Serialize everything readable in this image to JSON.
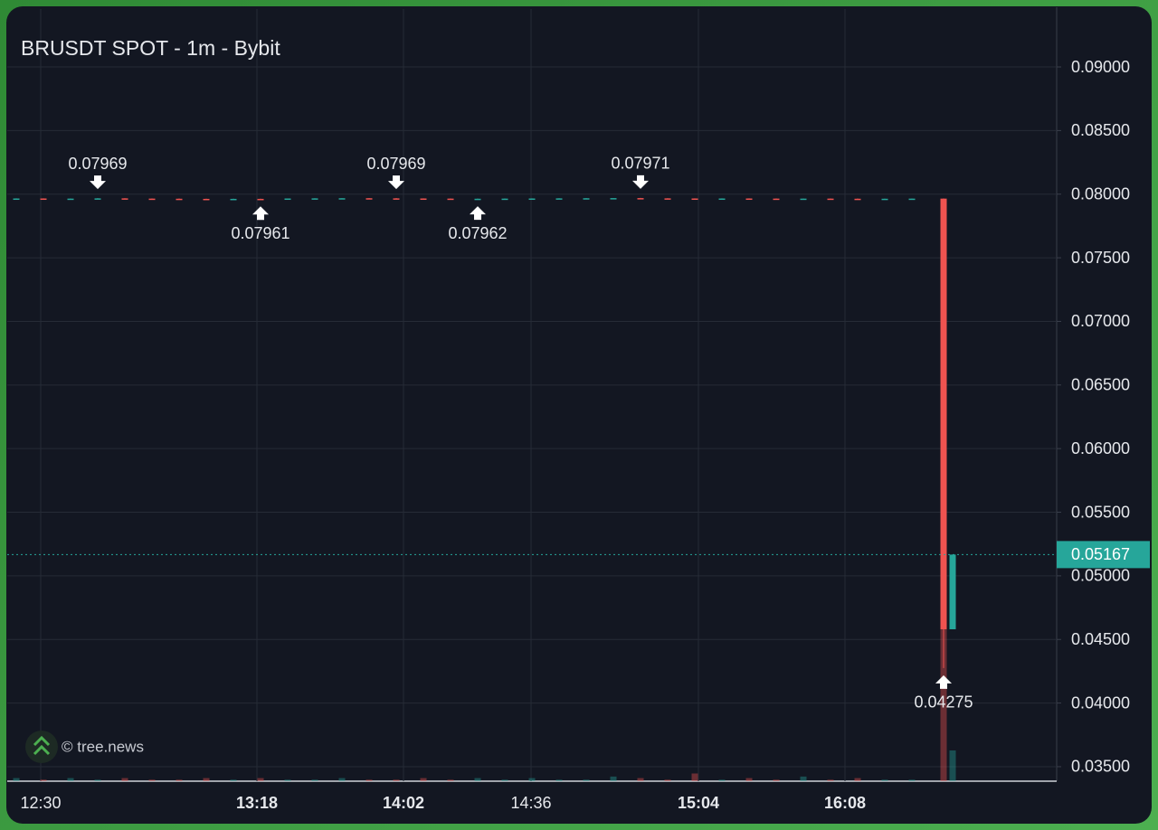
{
  "chart_data": {
    "type": "candlestick",
    "title": "BRUSDT SPOT - 1m - Bybit",
    "watermark": "© tree.news",
    "up_color": "#26a69a",
    "down_color": "#ef5350",
    "x": [
      1,
      4,
      7,
      10,
      13,
      16,
      19,
      22,
      25,
      28,
      31,
      34,
      37,
      40,
      43,
      46,
      49,
      52,
      55,
      58,
      61,
      64,
      67,
      70,
      73,
      76,
      79,
      82,
      85,
      88,
      91,
      94,
      97,
      100,
      103.5,
      104.5
    ],
    "open": [
      0.07965,
      0.07966,
      0.07964,
      0.07965,
      0.07967,
      0.07965,
      0.07964,
      0.07963,
      0.07962,
      0.07963,
      0.07965,
      0.07966,
      0.07967,
      0.07968,
      0.07967,
      0.07966,
      0.07965,
      0.07963,
      0.07964,
      0.07965,
      0.07966,
      0.07967,
      0.07968,
      0.07969,
      0.07967,
      0.07966,
      0.07965,
      0.07966,
      0.07965,
      0.07964,
      0.07965,
      0.07964,
      0.07963,
      0.07964,
      0.07965,
      0.0458
    ],
    "high": [
      0.07967,
      0.07967,
      0.07966,
      0.07969,
      0.07968,
      0.07966,
      0.07965,
      0.07964,
      0.07964,
      0.07964,
      0.07966,
      0.07968,
      0.07968,
      0.07969,
      0.07969,
      0.07967,
      0.07966,
      0.07965,
      0.07966,
      0.07967,
      0.07968,
      0.07969,
      0.0797,
      0.07971,
      0.07968,
      0.07967,
      0.07967,
      0.07967,
      0.07966,
      0.07965,
      0.07966,
      0.07965,
      0.07964,
      0.07965,
      0.07966,
      0.05167
    ],
    "low": [
      0.07964,
      0.07963,
      0.07963,
      0.07964,
      0.07965,
      0.07963,
      0.07962,
      0.07962,
      0.07962,
      0.07961,
      0.07964,
      0.07965,
      0.07966,
      0.07966,
      0.07965,
      0.07964,
      0.07963,
      0.07962,
      0.07963,
      0.07964,
      0.07965,
      0.07966,
      0.07967,
      0.07967,
      0.07965,
      0.07964,
      0.07964,
      0.07964,
      0.07963,
      0.07963,
      0.07963,
      0.07963,
      0.07962,
      0.07963,
      0.04275,
      0.0458
    ],
    "close": [
      0.07966,
      0.07964,
      0.07965,
      0.07967,
      0.07965,
      0.07964,
      0.07963,
      0.07962,
      0.07963,
      0.07962,
      0.07966,
      0.07967,
      0.07968,
      0.07967,
      0.07966,
      0.07965,
      0.07963,
      0.07964,
      0.07965,
      0.07966,
      0.07967,
      0.07968,
      0.07969,
      0.07967,
      0.07966,
      0.07965,
      0.07966,
      0.07965,
      0.07964,
      0.07965,
      0.07964,
      0.07963,
      0.07964,
      0.07965,
      0.0458,
      0.05167
    ],
    "volume": [
      2,
      1,
      2,
      1,
      2,
      1,
      1,
      2,
      1,
      2,
      1,
      1,
      2,
      1,
      1,
      2,
      1,
      2,
      1,
      2,
      1,
      1,
      3,
      2,
      1,
      5,
      1,
      2,
      1,
      3,
      1,
      2,
      1,
      1,
      100,
      20
    ],
    "vlim": [
      0,
      100
    ],
    "xlim": [
      0,
      116
    ],
    "xticks": [
      {
        "value": 3.7,
        "label": "12:30",
        "bold": false
      },
      {
        "value": 27.6,
        "label": "13:18",
        "bold": true
      },
      {
        "value": 43.8,
        "label": "14:02",
        "bold": true
      },
      {
        "value": 57.9,
        "label": "14:36",
        "bold": false
      },
      {
        "value": 76.4,
        "label": "15:04",
        "bold": true
      },
      {
        "value": 92.6,
        "label": "16:08",
        "bold": true
      }
    ],
    "ylim": [
      0.03386,
      0.09455
    ],
    "yticks": [
      {
        "value": 0.035,
        "label": "0.03500"
      },
      {
        "value": 0.04,
        "label": "0.04000"
      },
      {
        "value": 0.045,
        "label": "0.04500"
      },
      {
        "value": 0.05,
        "label": "0.05000"
      },
      {
        "value": 0.055,
        "label": "0.05500"
      },
      {
        "value": 0.06,
        "label": "0.06000"
      },
      {
        "value": 0.065,
        "label": "0.06500"
      },
      {
        "value": 0.07,
        "label": "0.07000"
      },
      {
        "value": 0.075,
        "label": "0.07500"
      },
      {
        "value": 0.08,
        "label": "0.08000"
      },
      {
        "value": 0.085,
        "label": "0.08500"
      },
      {
        "value": 0.09,
        "label": "0.09000"
      }
    ],
    "grid": true,
    "last_price": 0.05167,
    "annotations": [
      {
        "x": 10,
        "value": 0.07969,
        "kind": "high"
      },
      {
        "x": 28,
        "value": 0.07961,
        "kind": "low"
      },
      {
        "x": 43,
        "value": 0.07969,
        "kind": "high"
      },
      {
        "x": 52,
        "value": 0.07962,
        "kind": "low"
      },
      {
        "x": 70,
        "value": 0.07971,
        "kind": "high"
      },
      {
        "x": 103.5,
        "value": 0.04275,
        "kind": "low"
      }
    ]
  }
}
